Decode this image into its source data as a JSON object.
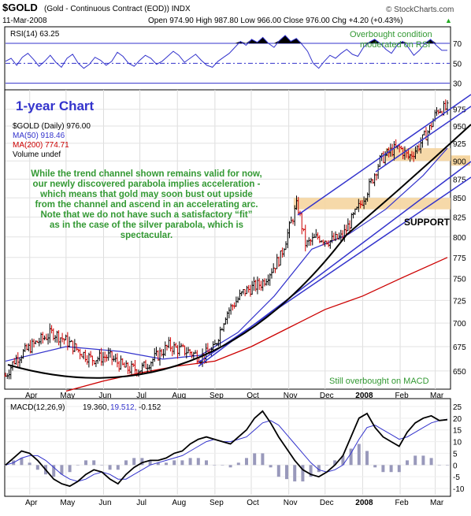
{
  "header": {
    "symbol_line": "$GOLD (Gold - Continuous Contract (EOD)) INDX",
    "symbol": "$GOLD",
    "symbol_desc": "(Gold - Continuous Contract (EOD)) INDX",
    "credit": "© StockCharts.com",
    "date": "11-Mar-2008",
    "ohlc": "Open 974.90  High 987.80  Low 966.00  Close 976.00  Chg +4.20 (+0.43%)",
    "ohlc_arrow": "▲"
  },
  "rsi_panel": {
    "label": "RSI(14) 63.25",
    "annotation": [
      "Overbought condition",
      "moderated on RSI"
    ],
    "ticks": [
      70,
      50,
      30
    ]
  },
  "price_panel": {
    "title": "1-year Chart",
    "legend": [
      {
        "text": "$GOLD (Daily) 976.00",
        "color": "#000000"
      },
      {
        "text": "MA(50) 918.46",
        "color": "#3333cc"
      },
      {
        "text": "MA(200) 774.71",
        "color": "#cc0000"
      },
      {
        "text": "Volume undef",
        "color": "#000000"
      }
    ],
    "commentary": [
      "While the trend channel shown remains valid for now,",
      "our newly discovered parabola implies acceleration -",
      "which means that gold may soon bust out upside",
      "from the channel and ascend in an accelerating arc.",
      "Note that we do not have such a satisfactory “fit”",
      "as in the case of the silver parabola, which is",
      "spectacular."
    ],
    "support_label": "SUPPORT",
    "macd_note": "Still overbought on MACD",
    "y_ticks": [
      975,
      950,
      925,
      900,
      875,
      850,
      825,
      800,
      775,
      750,
      725,
      700,
      675,
      650
    ],
    "highlight_tick": 900
  },
  "x_labels": [
    "Apr",
    "May",
    "Jun",
    "Jul",
    "Aug",
    "Sep",
    "Oct",
    "Nov",
    "Dec",
    "2008",
    "Feb",
    "Mar"
  ],
  "macd_panel": {
    "label_name": "MACD(12,26,9)",
    "label_macd": "19.360,",
    "label_signal": "19.512,",
    "label_hist": "-0.152",
    "ticks": [
      25,
      20,
      15,
      10,
      5,
      0,
      -5,
      -10
    ]
  },
  "colors": {
    "price_up": "#000000",
    "price_down": "#cc0000",
    "ma50": "#3333cc",
    "ma200": "#cc0000",
    "channel": "#3333cc",
    "parabola": "#000000",
    "commentary": "#339933",
    "rsi_fill": "#000000",
    "support_band": "#f5d5a0",
    "title_blue": "#3333cc",
    "histogram": "#9999bb"
  },
  "chart_data": {
    "type": "line",
    "x_start": "2007-03-12",
    "x_end": "2008-03-11",
    "x_axis": {
      "labels": [
        "Apr",
        "May",
        "Jun",
        "Jul",
        "Aug",
        "Sep",
        "Oct",
        "Nov",
        "Dec",
        "2008",
        "Feb",
        "Mar"
      ]
    },
    "price_axis": {
      "ylim": [
        635,
        1000
      ],
      "ticks": [
        650,
        675,
        700,
        725,
        750,
        775,
        800,
        825,
        850,
        875,
        900,
        925,
        950,
        975
      ],
      "log_scale": true
    },
    "price_series": {
      "name": "$GOLD (Daily)",
      "points": [
        [
          "2007-03-12",
          645
        ],
        [
          "2007-03-20",
          662
        ],
        [
          "2007-04-05",
          678
        ],
        [
          "2007-04-20",
          690
        ],
        [
          "2007-04-30",
          682
        ],
        [
          "2007-05-10",
          672
        ],
        [
          "2007-05-22",
          662
        ],
        [
          "2007-06-05",
          665
        ],
        [
          "2007-06-20",
          652
        ],
        [
          "2007-07-02",
          652
        ],
        [
          "2007-07-15",
          665
        ],
        [
          "2007-07-25",
          676
        ],
        [
          "2007-08-02",
          672
        ],
        [
          "2007-08-10",
          670
        ],
        [
          "2007-08-20",
          664
        ],
        [
          "2007-08-31",
          672
        ],
        [
          "2007-09-10",
          710
        ],
        [
          "2007-09-25",
          735
        ],
        [
          "2007-10-10",
          745
        ],
        [
          "2007-10-25",
          775
        ],
        [
          "2007-11-08",
          842
        ],
        [
          "2007-11-15",
          790
        ],
        [
          "2007-11-25",
          800
        ],
        [
          "2007-12-05",
          795
        ],
        [
          "2007-12-15",
          800
        ],
        [
          "2007-12-28",
          835
        ],
        [
          "2008-01-08",
          870
        ],
        [
          "2008-01-15",
          900
        ],
        [
          "2008-01-25",
          915
        ],
        [
          "2008-02-01",
          918
        ],
        [
          "2008-02-08",
          905
        ],
        [
          "2008-02-15",
          918
        ],
        [
          "2008-02-25",
          945
        ],
        [
          "2008-03-03",
          975
        ],
        [
          "2008-03-11",
          976
        ]
      ]
    },
    "series": [
      {
        "name": "MA(50)",
        "points": [
          [
            "2007-03-12",
            660
          ],
          [
            "2007-05-01",
            675
          ],
          [
            "2007-06-15",
            670
          ],
          [
            "2007-07-20",
            662
          ],
          [
            "2007-08-20",
            666
          ],
          [
            "2007-09-20",
            690
          ],
          [
            "2007-10-20",
            730
          ],
          [
            "2007-11-20",
            785
          ],
          [
            "2007-12-20",
            803
          ],
          [
            "2008-01-20",
            835
          ],
          [
            "2008-02-20",
            880
          ],
          [
            "2008-03-11",
            918
          ]
        ]
      },
      {
        "name": "MA(200)",
        "points": [
          [
            "2007-05-01",
            630
          ],
          [
            "2007-06-01",
            640
          ],
          [
            "2007-07-01",
            648
          ],
          [
            "2007-08-01",
            655
          ],
          [
            "2007-09-01",
            660
          ],
          [
            "2007-10-01",
            675
          ],
          [
            "2007-11-01",
            695
          ],
          [
            "2007-12-01",
            715
          ],
          [
            "2008-01-01",
            730
          ],
          [
            "2008-02-01",
            750
          ],
          [
            "2008-03-11",
            775
          ]
        ]
      }
    ],
    "support_zone": [
      835,
      850
    ],
    "resistance_zone_feb": [
      900,
      918
    ],
    "rsi": {
      "name": "RSI(14)",
      "last": 63.25,
      "ylim": [
        25,
        85
      ],
      "overbought": 70,
      "oversold": 30,
      "mid": 50,
      "values": [
        52,
        55,
        48,
        56,
        60,
        54,
        47,
        52,
        58,
        51,
        46,
        55,
        59,
        50,
        45,
        49,
        56,
        53,
        48,
        52,
        61,
        57,
        50,
        47,
        53,
        58,
        55,
        49,
        52,
        57,
        62,
        58,
        51,
        55,
        59,
        53,
        48,
        46,
        52,
        56,
        60,
        66,
        72,
        68,
        74,
        71,
        76,
        70,
        66,
        73,
        78,
        72,
        75,
        69,
        62,
        50,
        45,
        52,
        58,
        55,
        60,
        64,
        59,
        57,
        66,
        71,
        74,
        70,
        64,
        60,
        68,
        72,
        66,
        58,
        63,
        70,
        74,
        68,
        63,
        63
      ]
    },
    "macd": {
      "name": "MACD(12,26,9)",
      "macd_last": 19.36,
      "signal_last": 19.512,
      "hist_last": -0.152,
      "ylim": [
        -12,
        27
      ],
      "macd_values": [
        0,
        3,
        6,
        5,
        2,
        -2,
        -6,
        -8,
        -9,
        -7,
        -4,
        -2,
        -3,
        -6,
        -8,
        -4,
        -1,
        1,
        2,
        2,
        3,
        5,
        6,
        9,
        11,
        12,
        11,
        10,
        9,
        12,
        15,
        20,
        23,
        18,
        12,
        7,
        2,
        -2,
        -4,
        -5,
        -3,
        0,
        4,
        12,
        20,
        22,
        16,
        12,
        10,
        8,
        14,
        18,
        20,
        21,
        19,
        19.36
      ],
      "signal_values": [
        0,
        1,
        3,
        4,
        4,
        2,
        -1,
        -4,
        -6,
        -7,
        -6,
        -4,
        -3,
        -4,
        -6,
        -6,
        -4,
        -2,
        0,
        1,
        2,
        3,
        4,
        6,
        8,
        10,
        11,
        10,
        10,
        11,
        12,
        15,
        18,
        19,
        17,
        13,
        9,
        5,
        1,
        -2,
        -3,
        -2,
        0,
        5,
        11,
        16,
        17,
        15,
        13,
        11,
        12,
        14,
        16,
        18,
        19,
        19.512
      ]
    }
  }
}
